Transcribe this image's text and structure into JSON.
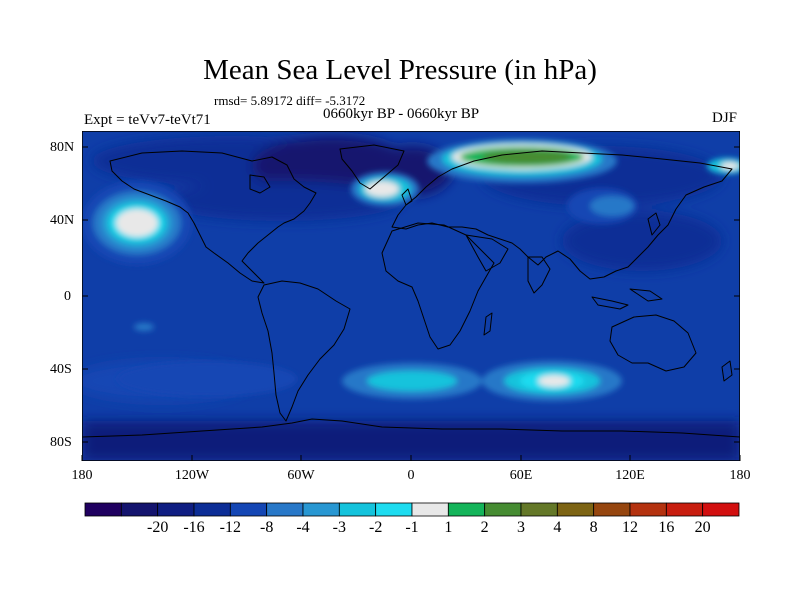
{
  "title": "Mean Sea Level Pressure (in hPa)",
  "stats": "rmsd= 5.89172 diff= -5.3172",
  "periods": "0660kyr BP - 0660kyr BP",
  "expt": "Expt = teVv7-teVt71",
  "season": "DJF",
  "lat_ticks": [
    "80N",
    "40N",
    "0",
    "40S",
    "80S"
  ],
  "lon_ticks": [
    "180",
    "120W",
    "60W",
    "0",
    "60E",
    "120E",
    "180"
  ],
  "colorbar": {
    "colors": [
      "#200060",
      "#14146e",
      "#0f1e82",
      "#0c2d96",
      "#1446b4",
      "#2878c8",
      "#2897d2",
      "#14c3dc",
      "#1edcf0",
      "#e8e8e8",
      "#14b45a",
      "#468c32",
      "#647828",
      "#7d6414",
      "#96460f",
      "#b4320f",
      "#c81e0f",
      "#d20f0f"
    ],
    "labels": [
      "-20",
      "-16",
      "-12",
      "-8",
      "-4",
      "-3",
      "-2",
      "-1",
      "1",
      "2",
      "3",
      "4",
      "8",
      "12",
      "16",
      "20"
    ]
  },
  "colors": {
    "background_field": "#0f3ea8",
    "coast": "#000000"
  }
}
